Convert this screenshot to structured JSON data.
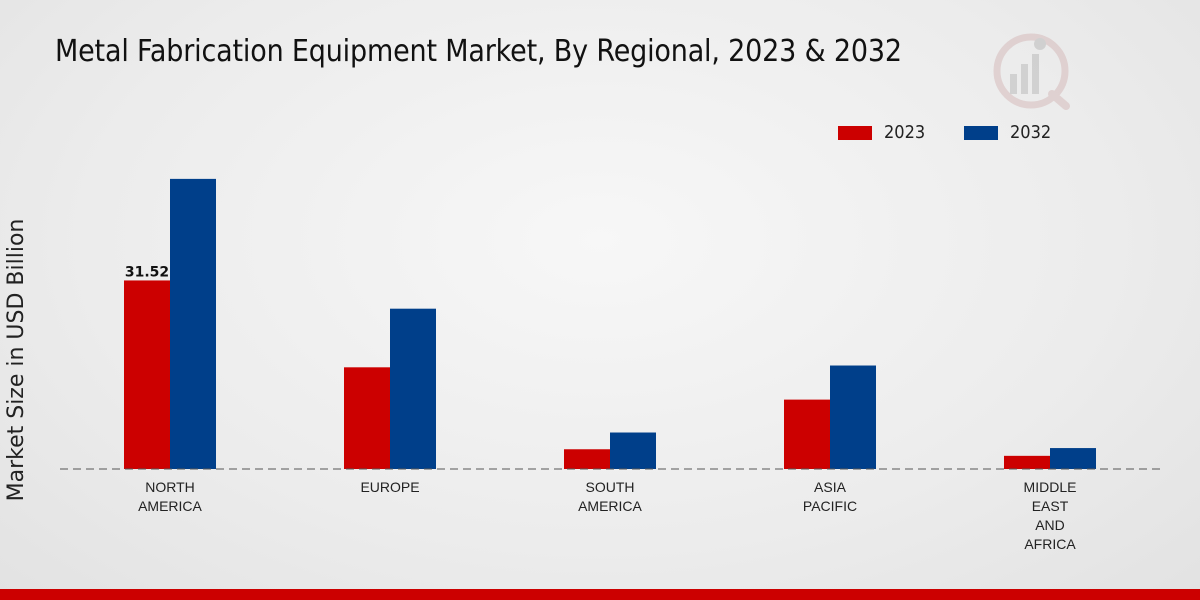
{
  "chart_data": {
    "type": "bar",
    "title": "Metal Fabrication Equipment Market, By Regional, 2023 & 2032",
    "xlabel": "",
    "ylabel": "Market Size in USD Billion",
    "ylim": [
      0,
      55
    ],
    "categories": [
      [
        "NORTH",
        "AMERICA"
      ],
      [
        "EUROPE"
      ],
      [
        "SOUTH",
        "AMERICA"
      ],
      [
        "ASIA",
        "PACIFIC"
      ],
      [
        "MIDDLE",
        "EAST",
        "AND",
        "AFRICA"
      ]
    ],
    "series": [
      {
        "name": "2023",
        "color": "#cc0000",
        "values": [
          31.52,
          17.0,
          3.3,
          11.6,
          2.2
        ]
      },
      {
        "name": "2032",
        "color": "#003f8a",
        "values": [
          48.5,
          26.8,
          6.1,
          17.3,
          3.5
        ]
      }
    ],
    "data_labels": [
      {
        "series": 0,
        "index": 0,
        "text": "31.52"
      }
    ],
    "legend_position": "top-right"
  }
}
